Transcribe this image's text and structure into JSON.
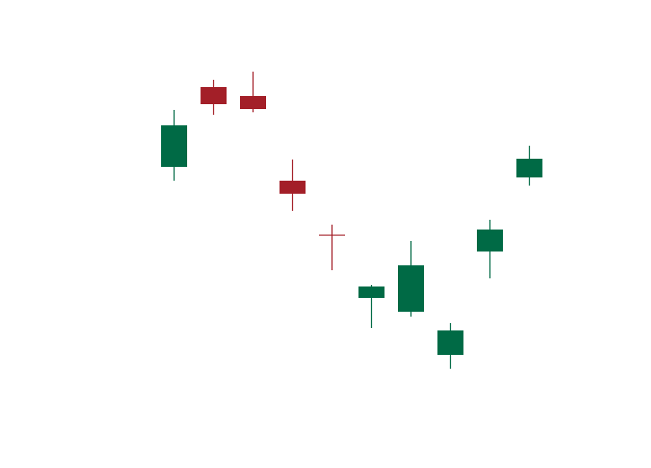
{
  "chart_data": {
    "type": "candlestick",
    "categories": [
      null,
      null,
      null,
      null,
      null,
      null,
      null,
      null,
      null,
      null
    ],
    "open": [
      370,
      468,
      457,
      353,
      286,
      209,
      192,
      139,
      266,
      357
    ],
    "high": [
      440,
      477,
      487,
      379,
      299,
      225,
      279,
      178,
      305,
      396
    ],
    "low": [
      353,
      434,
      437,
      316,
      243,
      172,
      186,
      122,
      233,
      347
    ],
    "close": [
      421,
      447,
      441,
      337,
      286,
      223,
      249,
      169,
      293,
      380
    ],
    "up_color": "#006a45",
    "down_color": "#a31f28",
    "ylim": [
      0,
      575
    ]
  }
}
